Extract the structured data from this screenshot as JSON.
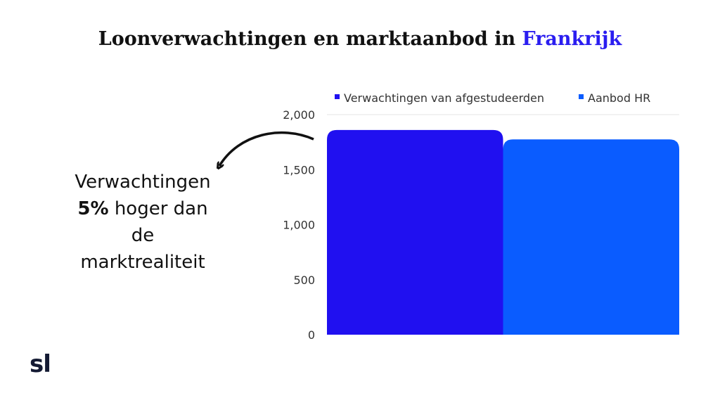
{
  "title": {
    "main": "Loonverwachtingen en marktaanbod in",
    "highlight": "Frankrijk"
  },
  "callout": {
    "line1": "Verwachtingen",
    "bold": "5%",
    "line2": " hoger dan",
    "line3": "de",
    "line4": "marktrealiteit"
  },
  "logo": "sl",
  "colors": {
    "series1": "#2010f0",
    "series2": "#0a5cff",
    "accent": "#2a1df0"
  },
  "chart_data": {
    "type": "bar",
    "categories": [
      ""
    ],
    "series": [
      {
        "name": "Verwachtingen van afgestudeerden",
        "values": [
          1860
        ]
      },
      {
        "name": "Aanbod HR",
        "values": [
          1775
        ]
      }
    ],
    "ylim": [
      0,
      2000
    ],
    "yticks": [
      "0",
      "500",
      "1,000",
      "1,500",
      "2,000"
    ],
    "ytick_values": [
      0,
      500,
      1000,
      1500,
      2000
    ],
    "legend": "top",
    "grid": false
  }
}
